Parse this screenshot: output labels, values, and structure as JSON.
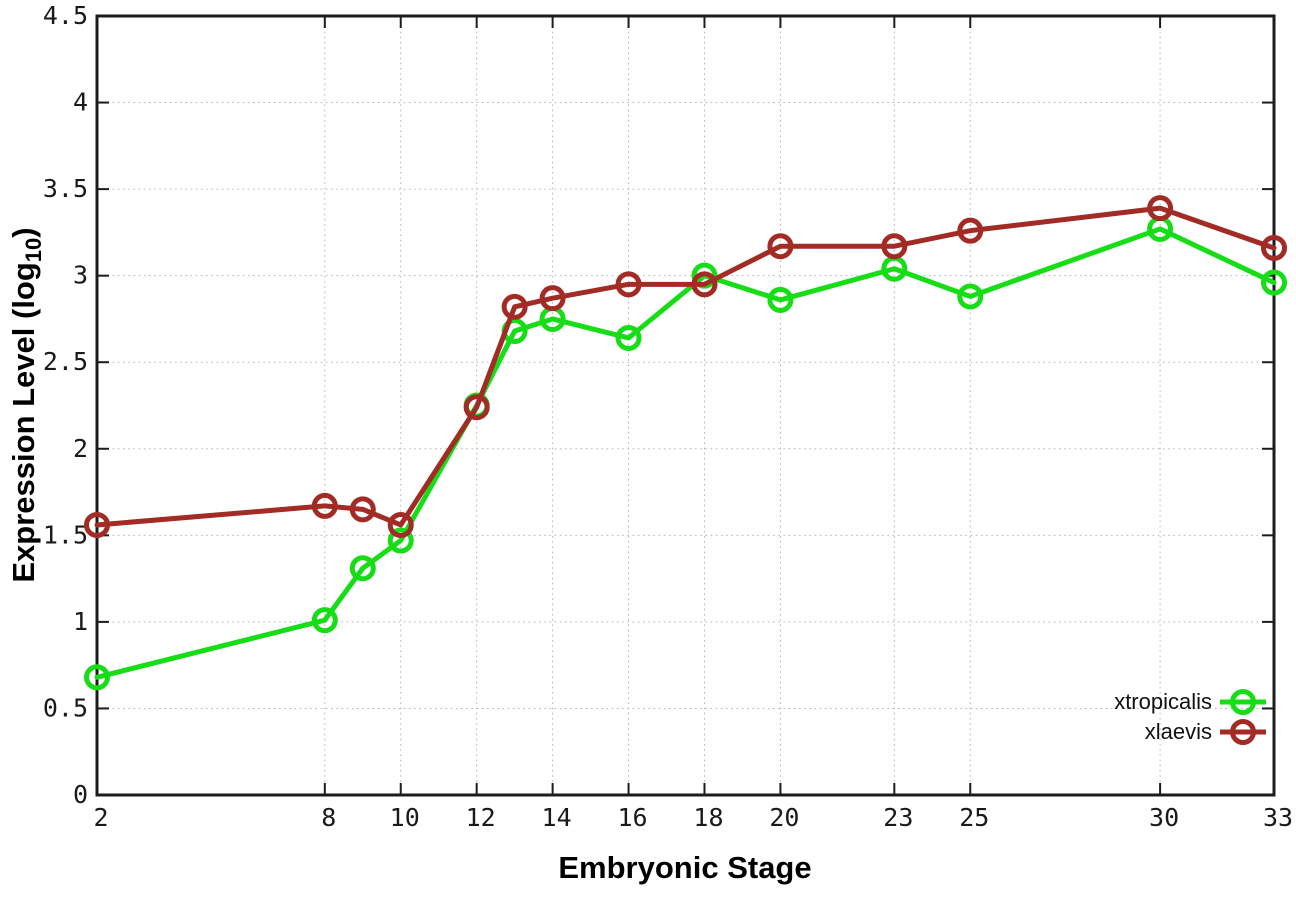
{
  "page": {
    "background": "#ffffff"
  },
  "chart_data": {
    "type": "line",
    "title": "",
    "xlabel": "Embryonic Stage",
    "ylabel": {
      "text": "Expression Level (log",
      "subscript": "10",
      "suffix": ")"
    },
    "x": [
      2,
      8,
      9,
      10,
      12,
      13,
      14,
      16,
      18,
      20,
      23,
      25,
      30,
      33
    ],
    "xticks": [
      2,
      8,
      10,
      12,
      14,
      16,
      18,
      20,
      23,
      25,
      30,
      33
    ],
    "yticks": [
      0,
      0.5,
      1,
      1.5,
      2,
      2.5,
      3,
      3.5,
      4,
      4.5
    ],
    "xlim": [
      2,
      33
    ],
    "ylim": [
      0,
      4.5
    ],
    "grid": true,
    "legend_position": "bottom-right",
    "series": [
      {
        "name": "xtropicalis",
        "color": "#17dd17",
        "marker": "open-circle",
        "values": [
          0.68,
          1.01,
          1.31,
          1.47,
          2.25,
          2.68,
          2.75,
          2.64,
          3.0,
          2.86,
          3.04,
          2.88,
          3.27,
          2.96
        ]
      },
      {
        "name": "xlaevis",
        "color": "#a32b26",
        "marker": "open-circle",
        "values": [
          1.56,
          1.67,
          1.65,
          1.56,
          2.24,
          2.82,
          2.87,
          2.95,
          2.95,
          3.17,
          3.17,
          3.26,
          3.39,
          3.16
        ]
      }
    ]
  },
  "style": {
    "grid_color": "#b5b5b5",
    "axis_color": "#1c1c1c",
    "tick_label_color": "#1a1a1a",
    "line_width": 5,
    "marker_radius": 10.5,
    "marker_stroke_width": 5
  }
}
